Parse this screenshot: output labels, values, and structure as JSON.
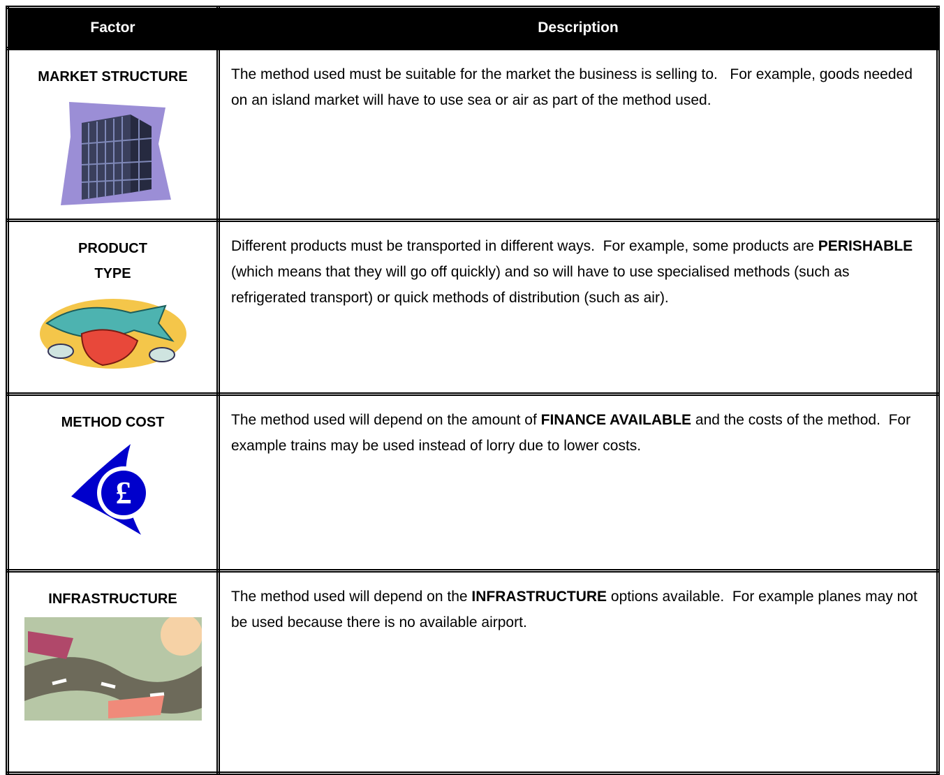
{
  "table": {
    "header": [
      "Factor",
      "Description"
    ],
    "rows": [
      {
        "factor": [
          "MARKET STRUCTURE"
        ],
        "description": [
          {
            "text": "The method used must be suitable for the market the business is selling to.   For example, goods needed on an island market will have to use sea or air as part of the method used."
          }
        ]
      },
      {
        "factor": [
          "PRODUCT",
          "TYPE"
        ],
        "description": [
          {
            "text": "Different products must be transported in different ways.  For example, some products are "
          },
          {
            "text": "PERISHABLE",
            "bold": true
          },
          {
            "text": " (which means that they will go off quickly) and so will have to use specialised methods (such as refrigerated transport) or quick methods of distribution (such as air)."
          }
        ]
      },
      {
        "factor": [
          "METHOD COST"
        ],
        "description": [
          {
            "text": "The method used will depend on the amount of "
          },
          {
            "text": "FINANCE AVAILABLE",
            "bold": true
          },
          {
            "text": " and the costs of the method.  For example trains may be used instead of lorry due to lower costs."
          }
        ]
      },
      {
        "factor": [
          "INFRASTRUCTURE"
        ],
        "description": [
          {
            "text": "The method used will depend on the "
          },
          {
            "text": "INFRASTRUCTURE",
            "bold": true
          },
          {
            "text": " options available.  For example planes may not be used because there is no available airport."
          }
        ]
      }
    ]
  }
}
